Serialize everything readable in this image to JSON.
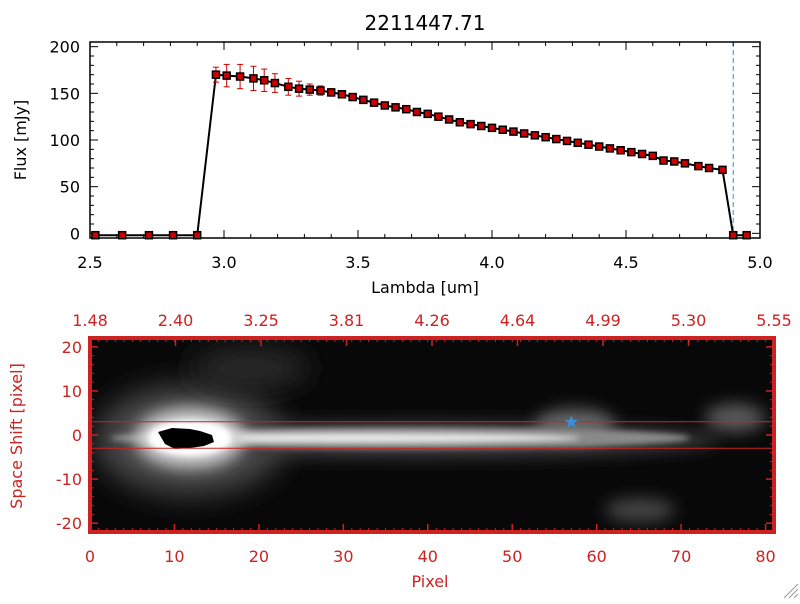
{
  "chart_data": [
    {
      "type": "line",
      "title": "2211447.71",
      "xlabel": "Lambda [um]",
      "ylabel": "Flux [mJy]",
      "xlim": [
        2.5,
        5.0
      ],
      "ylim": [
        -5,
        205
      ],
      "xticks": [
        "2.5",
        "3.0",
        "3.5",
        "4.0",
        "4.5",
        "5.0"
      ],
      "yticks": [
        "0",
        "50",
        "100",
        "150",
        "200"
      ],
      "grid": false,
      "vline": {
        "x": 4.9,
        "color": "#3a8fd8",
        "style": "dashed"
      },
      "series": [
        {
          "x": [
            2.52,
            2.62,
            2.72,
            2.81,
            2.9,
            2.97,
            3.01,
            3.06,
            3.11,
            3.15,
            3.19,
            3.24,
            3.28,
            3.32,
            3.36,
            3.4,
            3.44,
            3.48,
            3.52,
            3.56,
            3.6,
            3.64,
            3.68,
            3.72,
            3.76,
            3.8,
            3.84,
            3.88,
            3.92,
            3.96,
            4.0,
            4.04,
            4.08,
            4.12,
            4.16,
            4.2,
            4.24,
            4.28,
            4.32,
            4.36,
            4.4,
            4.44,
            4.48,
            4.52,
            4.56,
            4.6,
            4.64,
            4.68,
            4.72,
            4.77,
            4.81,
            4.86,
            4.9,
            4.95
          ],
          "values": [
            -2,
            -2,
            -2,
            -2,
            -2,
            170,
            169,
            168,
            166,
            164,
            161,
            157,
            155,
            154,
            153,
            151,
            149,
            146,
            143,
            140,
            137,
            135,
            133,
            130,
            128,
            125,
            122,
            119,
            117,
            115,
            113,
            111,
            109,
            107,
            105,
            103,
            101,
            99,
            97,
            95,
            93,
            91,
            89,
            87,
            85,
            83,
            78,
            77,
            75,
            72,
            70,
            68,
            -2,
            -2
          ],
          "errors": [
            0,
            0,
            0,
            0,
            0,
            8,
            12,
            13,
            13,
            12,
            10,
            9,
            8,
            6,
            5,
            4,
            3,
            3,
            3,
            3,
            3,
            3,
            3,
            3,
            3,
            3,
            3,
            3,
            3,
            3,
            3,
            3,
            3,
            3,
            3,
            3,
            3,
            3,
            3,
            3,
            3,
            3,
            3,
            3,
            3,
            3,
            3,
            3,
            3,
            3,
            3,
            3,
            0,
            0
          ],
          "line_color": "#000000",
          "marker_color": "#cc0000",
          "error_color": "#cc0000"
        }
      ]
    },
    {
      "type": "heatmap",
      "xlabel": "Pixel",
      "ylabel": "Space Shift [pixel]",
      "xlim": [
        0,
        81
      ],
      "ylim": [
        -22,
        22
      ],
      "xticks": [
        "0",
        "10",
        "20",
        "30",
        "40",
        "50",
        "60",
        "70",
        "80"
      ],
      "yticks": [
        "-20",
        "-10",
        "0",
        "10",
        "20"
      ],
      "top_axis_ticks": [
        "1.48",
        "2.40",
        "3.25",
        "3.81",
        "4.26",
        "4.64",
        "4.99",
        "5.30",
        "5.55"
      ],
      "extraction_lines": [
        3,
        -3
      ],
      "marker": {
        "x": 57,
        "y": 3,
        "color": "#3a8fd8",
        "symbol": "star"
      },
      "axis_color": "#cc2222",
      "colormap": "grayscale"
    }
  ]
}
